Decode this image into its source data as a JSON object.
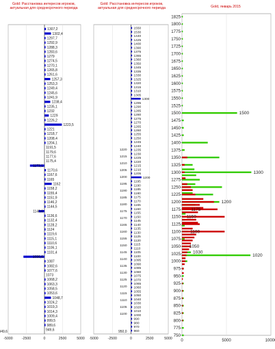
{
  "panels": [
    {
      "title": "Gold: Расстановка интересов игроков, актуальная для среднесрочного периода",
      "chart_data": {
        "type": "bar",
        "orientation": "horizontal",
        "title": "Gold: Расстановка интересов игроков, актуальная для среднесрочного периода",
        "xlim": [
          -5000,
          5000
        ],
        "xticks": [
          -5000,
          -2500,
          0,
          2500,
          5000
        ],
        "color": "#0000cc",
        "grid": true,
        "categories": [
          "1307,2",
          "1302,4",
          "1297,7",
          "1292,9",
          "1288,3",
          "1283,6",
          "1279",
          "1274,5",
          "1270,1",
          "1265,8",
          "1261,6",
          "1257,3",
          "1253,3",
          "1249,4",
          "1245,6",
          "1241,9",
          "1238,4",
          "1235,1",
          "1232",
          "1229",
          "1226,2",
          "1223,5",
          "1221",
          "1218,7",
          "1208,4",
          "1204,1",
          "1191,5",
          "1179,6",
          "1177,6",
          "1175,4",
          "1173,1",
          "1170,6",
          "1167,6",
          "1165",
          "1162",
          "1158,2",
          "1155,4",
          "1151,9",
          "1146,2",
          "1144,5",
          "1140,6",
          "1136,6",
          "1132,4",
          "1128,2",
          "1124",
          "1119,6",
          "1115,1",
          "1110,6",
          "1106,1",
          "1101,4",
          "1096,6",
          "1087",
          "1082,6",
          "1077,6",
          "1073",
          "1068,2",
          "1063,3",
          "1058,5",
          "1053,6",
          "1048,7",
          "1024,2",
          "1019,3",
          "1014,3",
          "1009,4",
          "999,5",
          "989,6",
          "949,6"
        ],
        "values": [
          200,
          900,
          150,
          150,
          150,
          150,
          150,
          150,
          150,
          150,
          150,
          800,
          150,
          150,
          150,
          150,
          800,
          150,
          150,
          600,
          150,
          2400,
          150,
          150,
          150,
          150,
          0,
          0,
          0,
          0,
          -2000,
          200,
          150,
          150,
          1000,
          150,
          150,
          150,
          150,
          150,
          -800,
          150,
          150,
          150,
          150,
          150,
          150,
          150,
          150,
          150,
          -2900,
          150,
          150,
          150,
          0,
          150,
          150,
          150,
          150,
          900,
          150,
          150,
          150,
          150,
          150,
          150,
          0
        ],
        "bottom_label": "949,6"
      }
    },
    {
      "title": "Gold: Расстановка интересов игроков, актуальная для среднесрочного периода",
      "chart_data": {
        "type": "bar",
        "orientation": "horizontal",
        "title": "Gold: Расстановка интересов игроков, актуальная для среднесрочного периода",
        "xlim": [
          -5000,
          5000
        ],
        "xticks": [
          -5000,
          -2500,
          0,
          2500,
          5000
        ],
        "color": "#0000cc",
        "grid": true,
        "right_labels": [
          "1550",
          "1530",
          "1440",
          "1425",
          "1400",
          "1390",
          "1375",
          "1365",
          "1360",
          "1350",
          "1345",
          "1335",
          "1330",
          "1325",
          "1320",
          "1315",
          "1310",
          "1305",
          "1300",
          "1295",
          "1290",
          "1285",
          "1280",
          "1275",
          "1270",
          "1265",
          "1260",
          "1255",
          "1250",
          "1245",
          "1240",
          "1235",
          "1230",
          "1225",
          "1220",
          "1215",
          "1210",
          "1205",
          "1200",
          "1195",
          "1190",
          "1185",
          "1180",
          "1175",
          "1170",
          "1165",
          "1160",
          "1155",
          "1150",
          "1145",
          "1140",
          "1135",
          "1130",
          "1125",
          "1120",
          "1115",
          "1110",
          "1105",
          "1100",
          "1095",
          "1090",
          "1085",
          "1080",
          "1075",
          "1070",
          "1065",
          "1060",
          "1055",
          "1050",
          "1040",
          "1030",
          "1020",
          "1010",
          "1000",
          "990",
          "980",
          "970",
          "960"
        ],
        "left_labels": [
          "1220",
          "1215",
          "1210",
          "1205",
          "1200",
          "1195",
          "1190",
          "1185",
          "1180",
          "1175",
          "1170",
          "1165",
          "1160",
          "1155",
          "1150",
          "1145",
          "1140",
          "1135",
          "1130",
          "1125",
          "1120",
          "1115",
          "1110",
          "1105",
          "1100"
        ],
        "values": [
          150,
          150,
          150,
          150,
          150,
          150,
          150,
          150,
          150,
          150,
          150,
          150,
          150,
          150,
          150,
          150,
          150,
          150,
          1300,
          150,
          150,
          150,
          150,
          150,
          150,
          150,
          150,
          150,
          150,
          150,
          150,
          150,
          150,
          150,
          150,
          150,
          150,
          150,
          1400,
          150,
          150,
          150,
          150,
          150,
          150,
          150,
          150,
          150,
          150,
          150,
          150,
          150,
          150,
          150,
          150,
          150,
          150,
          150,
          150,
          150,
          150,
          150,
          150,
          150,
          150,
          150,
          150,
          150,
          150,
          150,
          150,
          150,
          150,
          150,
          150,
          150,
          150,
          150
        ],
        "bottom_label": "950,0"
      }
    },
    {
      "title": "Gold, январь 2015",
      "chart_data": {
        "type": "bar",
        "orientation": "horizontal",
        "title": "Gold, январь 2015",
        "xlim": [
          0,
          10000
        ],
        "xticks": [
          0,
          5000,
          10000
        ],
        "grid": true,
        "ylim": [
          750,
          1835
        ],
        "yticks": [
          750,
          775,
          800,
          825,
          850,
          875,
          900,
          925,
          950,
          975,
          1000,
          1020,
          1025,
          1050,
          1075,
          1100,
          1120,
          1125,
          1150,
          1175,
          1190,
          1200,
          1225,
          1250,
          1275,
          1300,
          1325,
          1350,
          1375,
          1400,
          1425,
          1450,
          1475,
          1500,
          1525,
          1550,
          1575,
          1600,
          1625,
          1650,
          1675,
          1700,
          1725,
          1750,
          1775,
          1800,
          1825
        ],
        "series": [
          {
            "color": "#33cc00",
            "values": [
              {
                "y": 1825,
                "v": 100
              },
              {
                "y": 1800,
                "v": 100
              },
              {
                "y": 1775,
                "v": 100
              },
              {
                "y": 1750,
                "v": 100
              },
              {
                "y": 1725,
                "v": 100
              },
              {
                "y": 1700,
                "v": 100
              },
              {
                "y": 1675,
                "v": 100
              },
              {
                "y": 1650,
                "v": 100
              },
              {
                "y": 1625,
                "v": 100
              },
              {
                "y": 1600,
                "v": 100
              },
              {
                "y": 1575,
                "v": 100
              },
              {
                "y": 1550,
                "v": 100
              },
              {
                "y": 1525,
                "v": 100
              },
              {
                "y": 1500,
                "v": 6200
              },
              {
                "y": 1475,
                "v": 200
              },
              {
                "y": 1450,
                "v": 200
              },
              {
                "y": 1425,
                "v": 200
              },
              {
                "y": 1400,
                "v": 2900
              },
              {
                "y": 1375,
                "v": 300
              },
              {
                "y": 1350,
                "v": 4200
              },
              {
                "y": 1325,
                "v": 1200
              },
              {
                "y": 1310,
                "v": 1400
              },
              {
                "y": 1300,
                "v": 7800
              },
              {
                "y": 1290,
                "v": 1600
              },
              {
                "y": 1275,
                "v": 2000
              },
              {
                "y": 1260,
                "v": 1500
              },
              {
                "y": 1250,
                "v": 4500
              },
              {
                "y": 1240,
                "v": 800
              },
              {
                "y": 1230,
                "v": 1200
              },
              {
                "y": 1225,
                "v": 3500
              },
              {
                "y": 1210,
                "v": 1000
              },
              {
                "y": 1200,
                "v": 4200
              },
              {
                "y": 1190,
                "v": 1500
              },
              {
                "y": 1175,
                "v": 800
              },
              {
                "y": 1160,
                "v": 400
              },
              {
                "y": 1150,
                "v": 300
              },
              {
                "y": 1140,
                "v": 300
              },
              {
                "y": 1120,
                "v": 300
              },
              {
                "y": 1100,
                "v": 700
              },
              {
                "y": 1090,
                "v": 300
              },
              {
                "y": 1075,
                "v": 300
              },
              {
                "y": 1050,
                "v": 600
              },
              {
                "y": 1030,
                "v": 1000
              },
              {
                "y": 1020,
                "v": 7700
              },
              {
                "y": 1000,
                "v": 600
              },
              {
                "y": 975,
                "v": 200
              },
              {
                "y": 950,
                "v": 200
              },
              {
                "y": 925,
                "v": 200
              },
              {
                "y": 900,
                "v": 200
              },
              {
                "y": 875,
                "v": 200
              },
              {
                "y": 850,
                "v": 200
              },
              {
                "y": 825,
                "v": 200
              },
              {
                "y": 800,
                "v": 200
              },
              {
                "y": 775,
                "v": 200
              },
              {
                "y": 750,
                "v": 200
              }
            ]
          },
          {
            "color": "#cc0000",
            "values": [
              {
                "y": 1350,
                "v": 600
              },
              {
                "y": 1325,
                "v": 300
              },
              {
                "y": 1300,
                "v": 300
              },
              {
                "y": 1280,
                "v": 400
              },
              {
                "y": 1260,
                "v": 600
              },
              {
                "y": 1250,
                "v": 1000
              },
              {
                "y": 1240,
                "v": 1200
              },
              {
                "y": 1225,
                "v": 1500
              },
              {
                "y": 1210,
                "v": 2400
              },
              {
                "y": 1200,
                "v": 3600
              },
              {
                "y": 1190,
                "v": 2000
              },
              {
                "y": 1180,
                "v": 2400
              },
              {
                "y": 1175,
                "v": 4000
              },
              {
                "y": 1165,
                "v": 1800
              },
              {
                "y": 1150,
                "v": 4800
              },
              {
                "y": 1140,
                "v": 1600
              },
              {
                "y": 1130,
                "v": 1800
              },
              {
                "y": 1125,
                "v": 2000
              },
              {
                "y": 1110,
                "v": 1200
              },
              {
                "y": 1100,
                "v": 4800
              },
              {
                "y": 1090,
                "v": 1600
              },
              {
                "y": 1080,
                "v": 1400
              },
              {
                "y": 1070,
                "v": 1200
              },
              {
                "y": 1060,
                "v": 1000
              },
              {
                "y": 1050,
                "v": 1000
              },
              {
                "y": 1040,
                "v": 800
              },
              {
                "y": 1030,
                "v": 600
              },
              {
                "y": 1020,
                "v": 500
              },
              {
                "y": 1010,
                "v": 400
              },
              {
                "y": 1000,
                "v": 400
              },
              {
                "y": 990,
                "v": 300
              },
              {
                "y": 975,
                "v": 200
              },
              {
                "y": 960,
                "v": 200
              },
              {
                "y": 940,
                "v": 100
              },
              {
                "y": 925,
                "v": 100
              },
              {
                "y": 900,
                "v": 100
              },
              {
                "y": 875,
                "v": 100
              },
              {
                "y": 850,
                "v": 100
              },
              {
                "y": 825,
                "v": 100
              },
              {
                "y": 800,
                "v": 100
              }
            ]
          }
        ],
        "annotations": [
          {
            "y": 1500,
            "text": "1500"
          },
          {
            "y": 1300,
            "text": "1300"
          },
          {
            "y": 1200,
            "text": "1200"
          },
          {
            "y": 1175,
            "text": "1175"
          },
          {
            "y": 1150,
            "text": "1150"
          },
          {
            "y": 1100,
            "text": "1100"
          },
          {
            "y": 1050,
            "text": "1050"
          },
          {
            "y": 1030,
            "text": "1030"
          },
          {
            "y": 1020,
            "text": "1020"
          }
        ]
      }
    }
  ]
}
